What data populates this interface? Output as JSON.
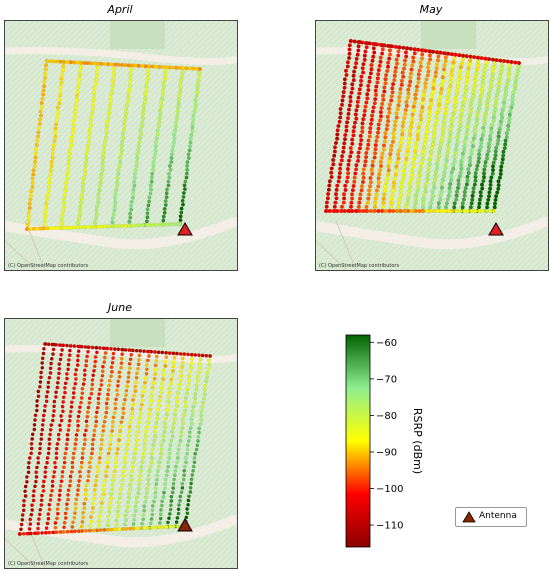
{
  "panels": [
    {
      "id": "april",
      "title": "April",
      "credit": "(C) OpenStreetMap contributors"
    },
    {
      "id": "may",
      "title": "May",
      "credit": "(C) OpenStreetMap contributors"
    },
    {
      "id": "june",
      "title": "June",
      "credit": "(C) OpenStreetMap contributors"
    }
  ],
  "colorbar": {
    "label": "RSRP (dBm)",
    "min": -116,
    "max": -58,
    "ticks": [
      "-60",
      "-70",
      "-80",
      "-90",
      "-100",
      "-110"
    ],
    "tick_values": [
      -60,
      -70,
      -80,
      -90,
      -100,
      -110
    ],
    "gradient": [
      "#8b0000",
      "#ff0000",
      "#ffff00",
      "#90ee90",
      "#006400"
    ]
  },
  "legend": {
    "label": "Antenna",
    "marker": "triangle-icon",
    "marker_color": "#8b2500"
  },
  "colors": {
    "map_bg": "#dcebd5",
    "hatch": "#c3ddb9",
    "road": "#f3efe7",
    "antenna": "#e02020"
  }
}
